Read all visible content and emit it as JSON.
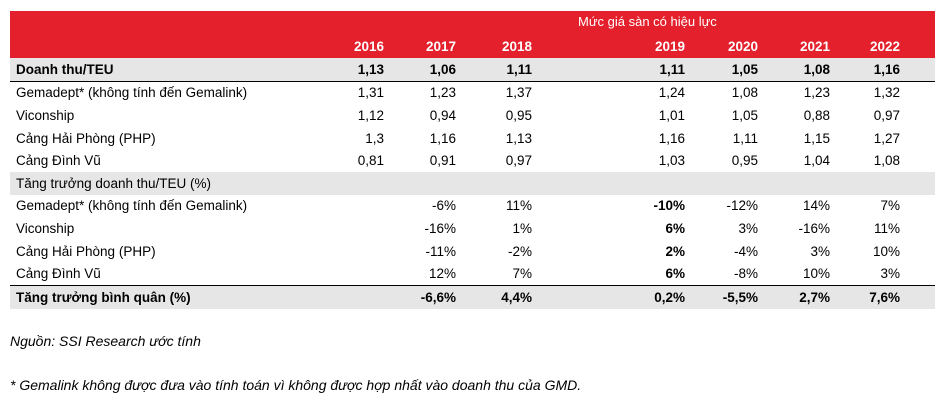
{
  "header": {
    "title": "Mức giá sàn có hiệu lực",
    "years": [
      "2016",
      "2017",
      "2018",
      "2019",
      "2020",
      "2021",
      "2022"
    ]
  },
  "rows": [
    {
      "label": "Doanh thu/TEU",
      "values": [
        "1,13",
        "1,06",
        "1,11",
        "1,11",
        "1,05",
        "1,08",
        "1,16"
      ]
    },
    {
      "label": "Gemadept* (không tính đến Gemalink)",
      "values": [
        "1,31",
        "1,23",
        "1,37",
        "1,24",
        "1,08",
        "1,23",
        "1,32"
      ]
    },
    {
      "label": "Viconship",
      "values": [
        "1,12",
        "0,94",
        "0,95",
        "1,01",
        "1,05",
        "0,88",
        "0,97"
      ]
    },
    {
      "label": "Cảng Hải Phòng (PHP)",
      "values": [
        "1,3",
        "1,16",
        "1,13",
        "1,16",
        "1,11",
        "1,15",
        "1,27"
      ]
    },
    {
      "label": "Cảng Đình Vũ",
      "values": [
        "0,81",
        "0,91",
        "0,97",
        "1,03",
        "0,95",
        "1,04",
        "1,08"
      ]
    },
    {
      "label": "Tăng trưởng doanh thu/TEU (%)",
      "values": [
        "",
        "",
        "",
        "",
        "",
        "",
        ""
      ]
    },
    {
      "label": "Gemadept* (không tính đến Gemalink)",
      "values": [
        "",
        "-6%",
        "11%",
        "-10%",
        "-12%",
        "14%",
        "7%"
      ]
    },
    {
      "label": "Viconship",
      "values": [
        "",
        "-16%",
        "1%",
        "6%",
        "3%",
        "-16%",
        "11%"
      ]
    },
    {
      "label": "Cảng Hải Phòng (PHP)",
      "values": [
        "",
        "-11%",
        "-2%",
        "2%",
        "-4%",
        "3%",
        "10%"
      ]
    },
    {
      "label": "Cảng Đình Vũ",
      "values": [
        "",
        "12%",
        "7%",
        "6%",
        "-8%",
        "10%",
        "3%"
      ]
    },
    {
      "label": "Tăng trưởng bình quân (%)",
      "values": [
        "",
        "-6,6%",
        "4,4%",
        "0,2%",
        "-5,5%",
        "2,7%",
        "7,6%"
      ]
    }
  ],
  "notes": {
    "source": "Nguồn: SSI Research ước tính",
    "footnote": "* Gemalink không được đưa vào tính toán vì không được hợp nhất vào doanh thu của GMD."
  }
}
